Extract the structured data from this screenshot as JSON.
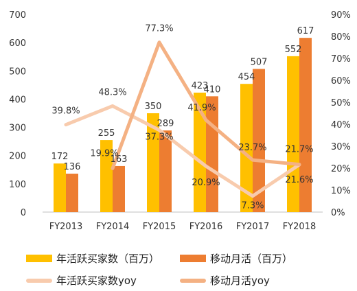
{
  "chart_data": {
    "type": "bar",
    "categories": [
      "FY2013",
      "FY2014",
      "FY2015",
      "FY2016",
      "FY2017",
      "FY2018"
    ],
    "series": [
      {
        "name": "年活跃买家数（百万）",
        "kind": "bar",
        "axis": "left",
        "color": "#FFC000",
        "values": [
          172,
          255,
          350,
          423,
          454,
          552
        ]
      },
      {
        "name": "移动月活（百万）",
        "kind": "bar",
        "axis": "left",
        "color": "#ED7D31",
        "values": [
          136,
          163,
          289,
          410,
          507,
          617
        ]
      },
      {
        "name": "年活跃买家数yoy",
        "kind": "line",
        "axis": "right",
        "color": "#F8CBAD",
        "values": [
          39.8,
          48.3,
          37.3,
          20.9,
          7.3,
          21.6
        ],
        "labels": [
          "39.8%",
          "48.3%",
          "37.3%",
          "20.9%",
          "7.3%",
          "21.6%"
        ]
      },
      {
        "name": "移动月活yoy",
        "kind": "line",
        "axis": "right",
        "color": "#F4B183",
        "values": [
          null,
          19.9,
          77.3,
          41.9,
          23.7,
          21.7
        ],
        "labels": [
          "",
          "19.9%",
          "77.3%",
          "41.9%",
          "23.7%",
          "21.7%"
        ]
      }
    ],
    "left_axis": {
      "min": 0,
      "max": 700,
      "ticks": [
        "0",
        "100",
        "200",
        "300",
        "400",
        "500",
        "600",
        "700"
      ]
    },
    "right_axis": {
      "min": 0,
      "max": 90,
      "ticks": [
        "0%",
        "10%",
        "20%",
        "30%",
        "40%",
        "50%",
        "60%",
        "70%",
        "80%",
        "90%"
      ]
    },
    "grid": false,
    "legend_position": "bottom"
  }
}
